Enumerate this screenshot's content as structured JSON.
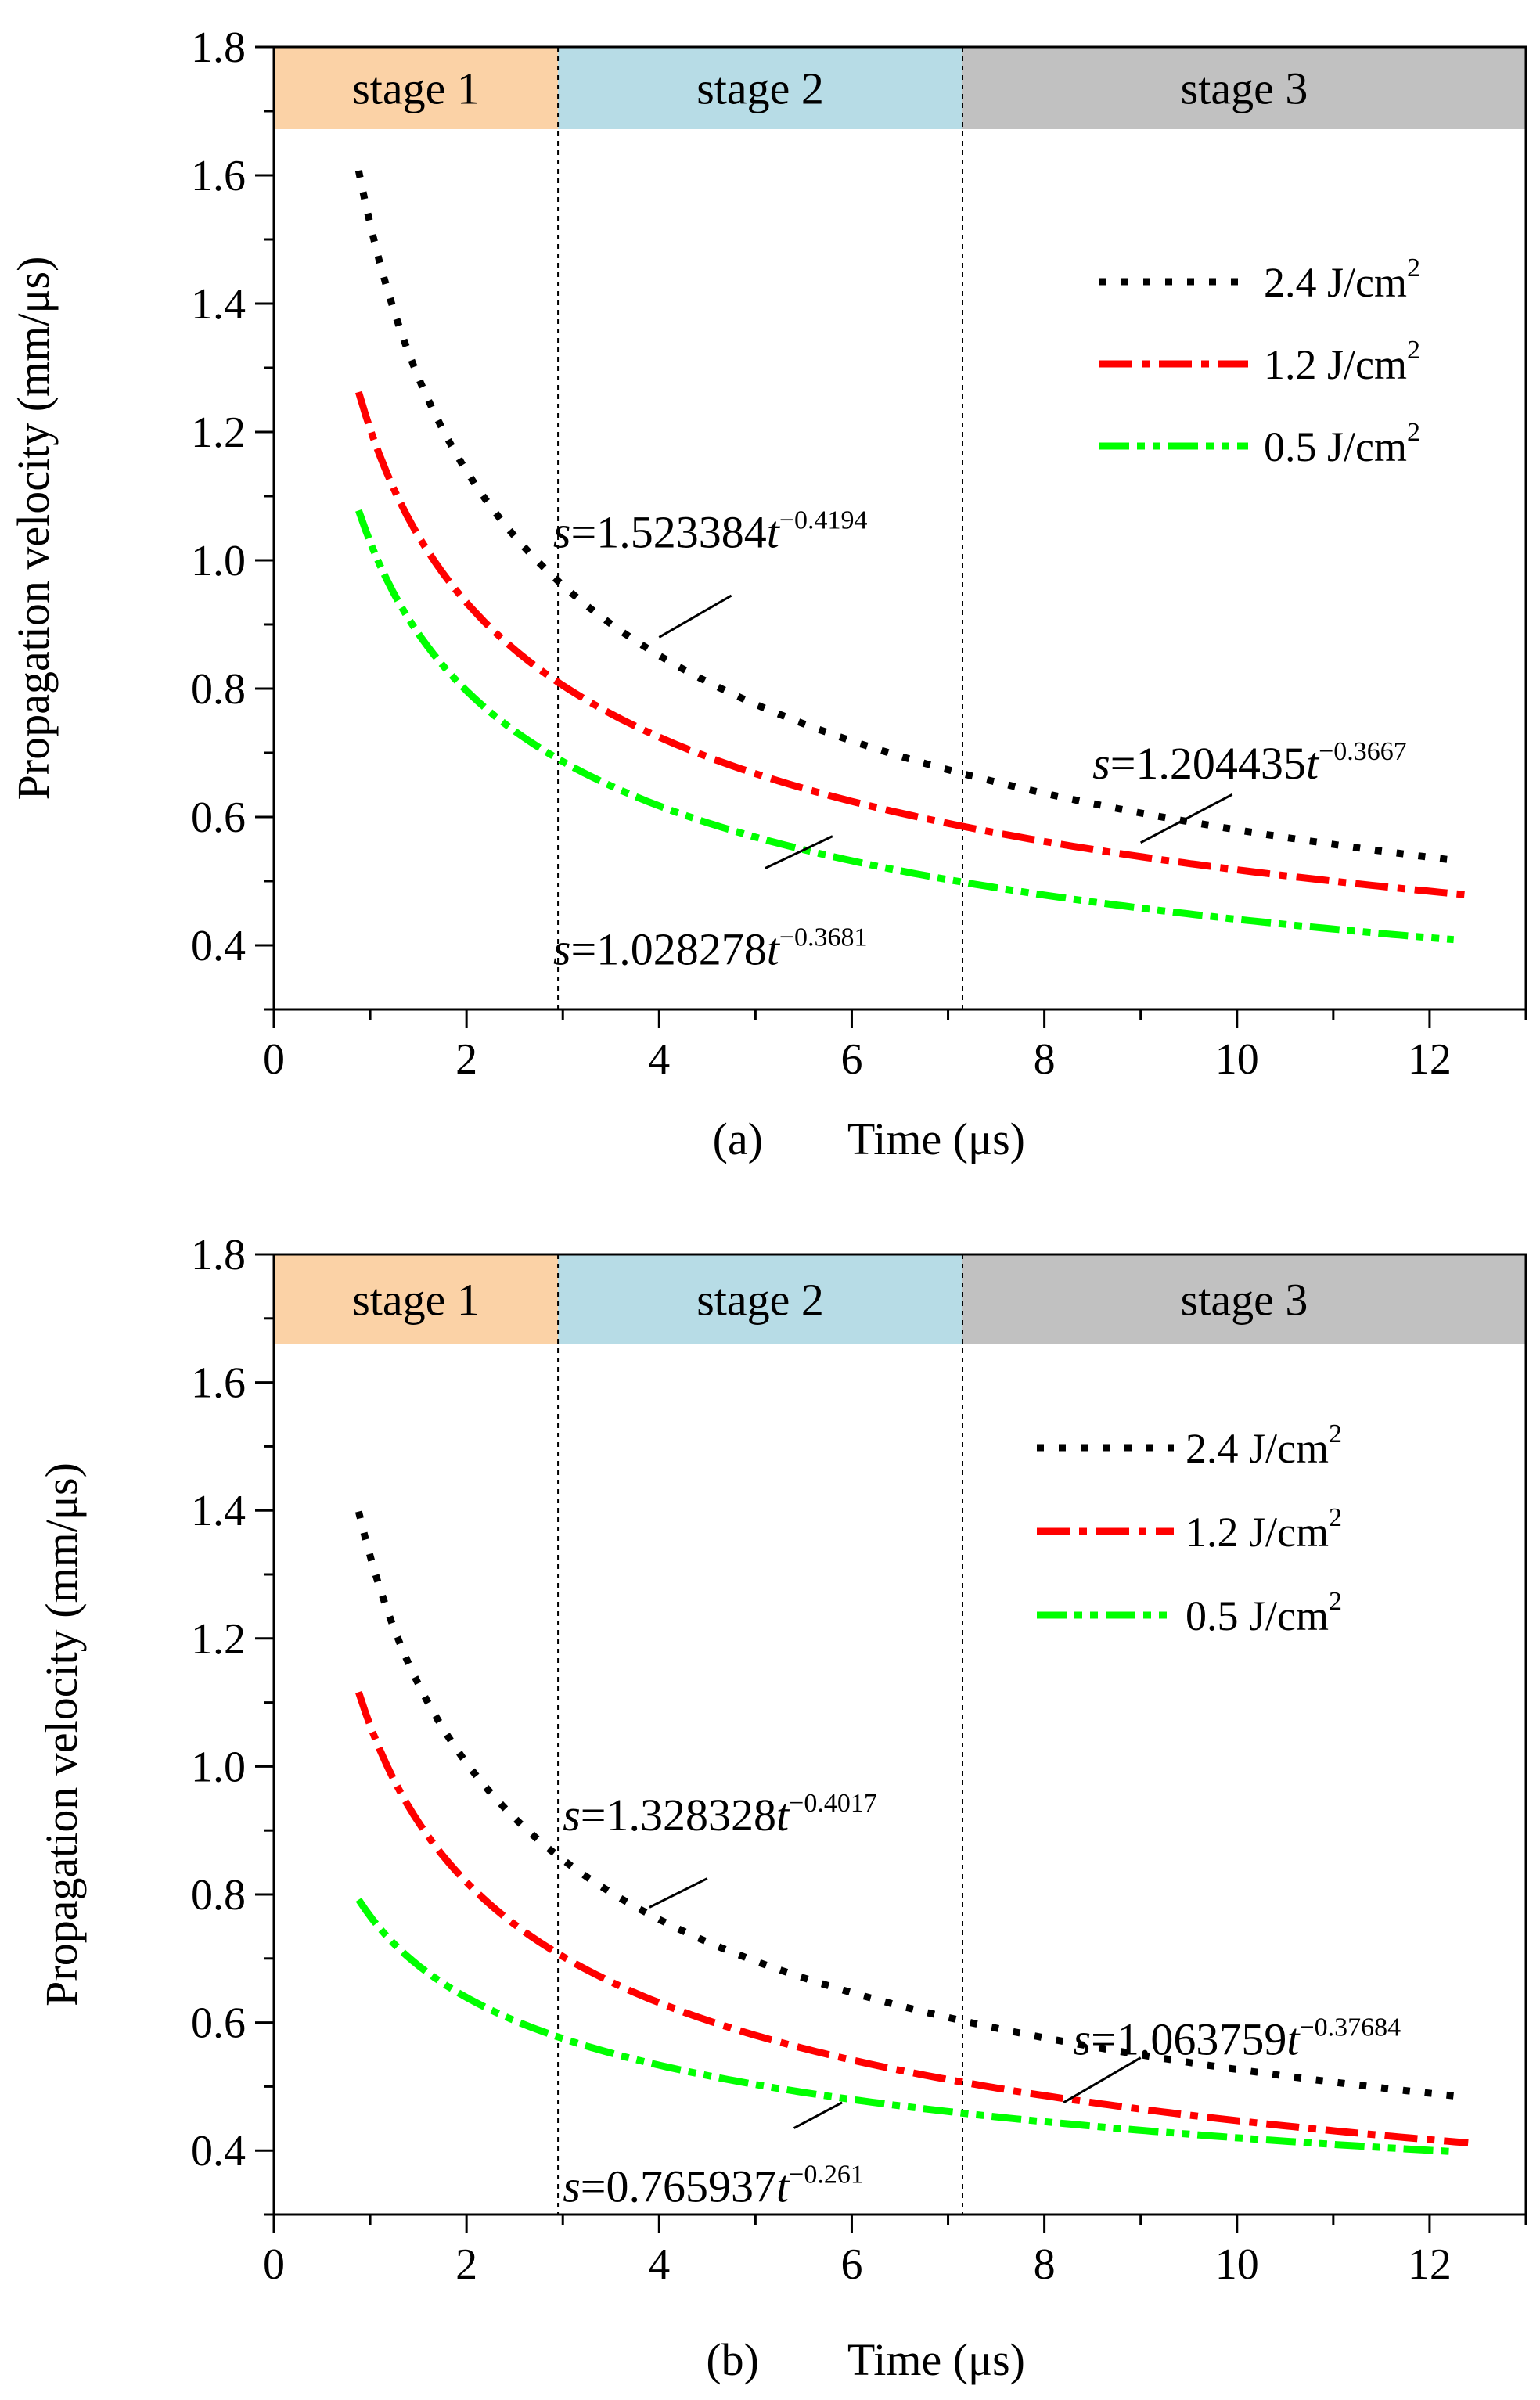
{
  "chart_data": [
    {
      "type": "line",
      "panel_label": "(a)",
      "xlabel": "Time (μs)",
      "ylabel": "Propagation velocity (mm/μs)",
      "xlim": [
        0,
        13
      ],
      "ylim": [
        0.3,
        1.8
      ],
      "xticks": [
        0,
        2,
        4,
        6,
        8,
        10,
        12
      ],
      "yticks": [
        0.4,
        0.6,
        0.8,
        1.0,
        1.2,
        1.4,
        1.6,
        1.8
      ],
      "xtick_labels": [
        "0",
        "2",
        "4",
        "6",
        "8",
        "10",
        "12"
      ],
      "ytick_labels": [
        "0.4",
        "0.6",
        "0.8",
        "1.0",
        "1.2",
        "1.4",
        "1.6",
        "1.8"
      ],
      "stages": [
        {
          "label": "stage 1",
          "x_start": 0,
          "x_end": 2.95,
          "color": "#fbd2a6"
        },
        {
          "label": "stage 2",
          "x_start": 2.95,
          "x_end": 7.15,
          "color": "#b7dce6"
        },
        {
          "label": "stage 3",
          "x_start": 7.15,
          "x_end": 13,
          "color": "#c1c1c1"
        }
      ],
      "series": [
        {
          "name": "2.4 J/cm",
          "sup": "2",
          "color": "#000000",
          "dash": "dot",
          "a": 1.523384,
          "b": -0.4194,
          "t_start": 0.88,
          "t_end": 12.25,
          "sample_t": [
            1,
            2,
            3,
            4,
            6,
            8,
            10,
            12
          ],
          "sample_values": [
            1.523,
            1.137,
            0.965,
            0.852,
            0.718,
            0.637,
            0.581,
            0.538
          ]
        },
        {
          "name": "1.2 J/cm",
          "sup": "2",
          "color": "#ff0000",
          "dash": "dashdot",
          "a": 1.204435,
          "b": -0.3667,
          "t_start": 0.88,
          "t_end": 12.4,
          "sample_t": [
            1,
            2,
            3,
            4,
            6,
            8,
            10,
            12
          ],
          "sample_values": [
            1.204,
            0.938,
            0.805,
            0.721,
            0.625,
            0.562,
            0.519,
            0.484
          ]
        },
        {
          "name": "0.5 J/cm",
          "sup": "2",
          "color": "#00ff00",
          "dash": "dashdotdot",
          "a": 1.028278,
          "b": -0.3681,
          "t_start": 0.88,
          "t_end": 12.25,
          "sample_t": [
            1,
            2,
            3,
            4,
            6,
            8,
            10,
            12
          ],
          "sample_values": [
            1.028,
            0.8,
            0.686,
            0.615,
            0.531,
            0.479,
            0.44,
            0.413
          ]
        }
      ],
      "annotations": [
        {
          "var": "s",
          "coef": "=1.523384",
          "tvar": "t",
          "exp": "−0.4194",
          "text_x": 2.9,
          "text_y": 1.02,
          "line_from": [
            4.75,
            0.945
          ],
          "line_to": [
            4.0,
            0.88
          ]
        },
        {
          "var": "s",
          "coef": "=1.204435",
          "tvar": "t",
          "exp": "−0.3667",
          "text_x": 8.5,
          "text_y": 0.66,
          "line_from": [
            9.95,
            0.635
          ],
          "line_to": [
            9.0,
            0.56
          ]
        },
        {
          "var": "s",
          "coef": "=1.028278",
          "tvar": "t",
          "exp": "−0.3681",
          "text_x": 2.9,
          "text_y": 0.37,
          "line_from": [
            5.1,
            0.52
          ],
          "line_to": [
            5.8,
            0.57
          ]
        }
      ]
    },
    {
      "type": "line",
      "panel_label": "(b)",
      "xlabel": "Time (μs)",
      "ylabel": "Propagation velocity (mm/μs)",
      "xlim": [
        0,
        13
      ],
      "ylim": [
        0.3,
        1.8
      ],
      "xticks": [
        0,
        2,
        4,
        6,
        8,
        10,
        12
      ],
      "yticks": [
        0.4,
        0.6,
        0.8,
        1.0,
        1.2,
        1.4,
        1.6,
        1.8
      ],
      "xtick_labels": [
        "0",
        "2",
        "4",
        "6",
        "8",
        "10",
        "12"
      ],
      "ytick_labels": [
        "0.4",
        "0.6",
        "0.8",
        "1.0",
        "1.2",
        "1.4",
        "1.6",
        "1.8"
      ],
      "stages": [
        {
          "label": "stage 1",
          "x_start": 0,
          "x_end": 2.95,
          "color": "#fbd2a6"
        },
        {
          "label": "stage 2",
          "x_start": 2.95,
          "x_end": 7.15,
          "color": "#b7dce6"
        },
        {
          "label": "stage 3",
          "x_start": 7.15,
          "x_end": 13,
          "color": "#c1c1c1"
        }
      ],
      "series": [
        {
          "name": "2.4 J/cm",
          "sup": "2",
          "color": "#000000",
          "dash": "dot",
          "a": 1.328328,
          "b": -0.4017,
          "t_start": 0.88,
          "t_end": 12.25,
          "sample_t": [
            1,
            2,
            3,
            4,
            6,
            8,
            10,
            12
          ],
          "sample_values": [
            1.328,
            1.004,
            0.855,
            0.762,
            0.649,
            0.578,
            0.528,
            0.491
          ]
        },
        {
          "name": "1.2 J/cm",
          "sup": "2",
          "color": "#ff0000",
          "dash": "dashdot",
          "a": 1.063759,
          "b": -0.37684,
          "t_start": 0.88,
          "t_end": 12.4,
          "sample_t": [
            1,
            2,
            3,
            4,
            6,
            8,
            10,
            12
          ],
          "sample_values": [
            1.064,
            0.822,
            0.703,
            0.631,
            0.544,
            0.488,
            0.449,
            0.42
          ]
        },
        {
          "name": "0.5 J/cm",
          "sup": "2",
          "color": "#00ff00",
          "dash": "dashdotdot",
          "a": 0.765937,
          "b": -0.261,
          "t_start": 0.88,
          "t_end": 12.25,
          "sample_t": [
            1,
            2,
            3,
            4,
            6,
            8,
            10,
            12
          ],
          "sample_values": [
            0.766,
            0.641,
            0.578,
            0.537,
            0.481,
            0.447,
            0.42,
            0.399
          ]
        }
      ],
      "annotations": [
        {
          "var": "s",
          "coef": "=1.328328",
          "tvar": "t",
          "exp": "−0.4017",
          "text_x": 3.0,
          "text_y": 0.9,
          "line_from": [
            4.5,
            0.825
          ],
          "line_to": [
            3.9,
            0.78
          ]
        },
        {
          "var": "s",
          "coef": "=1.063759",
          "tvar": "t",
          "exp": "−0.37684",
          "text_x": 8.3,
          "text_y": 0.55,
          "line_from": [
            9.0,
            0.545
          ],
          "line_to": [
            8.2,
            0.475
          ]
        },
        {
          "var": "s",
          "coef": "=0.765937",
          "tvar": "t",
          "exp": "−0.261",
          "text_x": 3.0,
          "text_y": 0.32,
          "line_from": [
            5.4,
            0.435
          ],
          "line_to": [
            5.9,
            0.475
          ]
        }
      ]
    }
  ]
}
